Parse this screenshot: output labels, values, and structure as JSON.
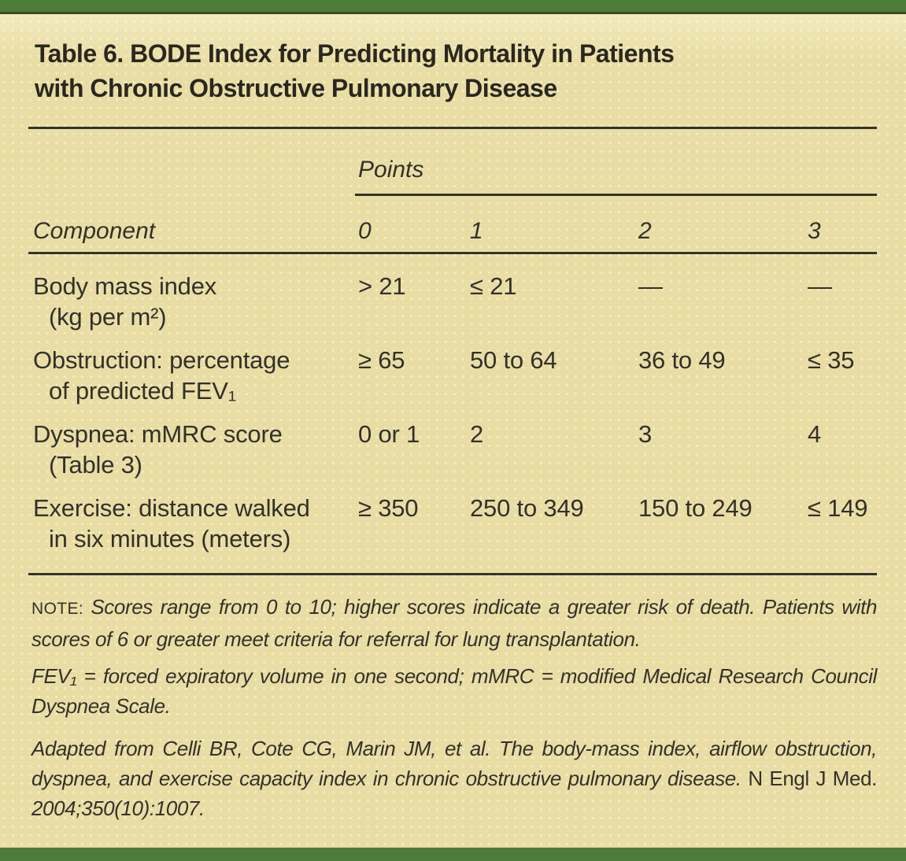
{
  "page": {
    "background_color": "#e9dda3",
    "bar_color": "#4d7c3a",
    "text_color": "#33302a"
  },
  "table": {
    "title_line1": "Table 6. BODE Index for Predicting Mortality in Patients",
    "title_line2": "with Chronic Obstructive Pulmonary Disease",
    "points_label": "Points",
    "component_header": "Component",
    "point_columns": [
      "0",
      "1",
      "2",
      "3"
    ],
    "rows": [
      {
        "label1": "Body mass index",
        "label2": "(kg per m²)",
        "values": [
          "> 21",
          "≤ 21",
          "—",
          "—"
        ]
      },
      {
        "label1": "Obstruction: percentage",
        "label2": "of predicted FEV₁",
        "values": [
          "≥ 65",
          "50 to 64",
          "36 to 49",
          "≤ 35"
        ]
      },
      {
        "label1": "Dyspnea: mMRC score",
        "label2": "(Table 3)",
        "values": [
          "0 or 1",
          "2",
          "3",
          "4"
        ]
      },
      {
        "label1": "Exercise: distance walked",
        "label2": "in six minutes (meters)",
        "values": [
          "≥ 350",
          "250 to 349",
          "150 to 249",
          "≤ 149"
        ]
      }
    ]
  },
  "notes": {
    "note_label": "NOTE: ",
    "note_text": "Scores range from 0 to 10; higher scores indicate a greater risk of death. Patients with scores of 6 or greater meet criteria for referral for lung transplantation.",
    "abbreviations": "FEV₁ = forced expiratory volume in one second; mMRC = modified Medical Research Council Dyspnea Scale.",
    "citation_italic1": "Adapted from Celli BR, Cote CG, Marin JM, et al. The body-mass index, airflow obstruction, dyspnea, and exercise capacity index in chronic obstructive pulmonary disease.",
    "citation_roman": " N Engl J Med. ",
    "citation_italic2": "2004;350(10):1007."
  }
}
